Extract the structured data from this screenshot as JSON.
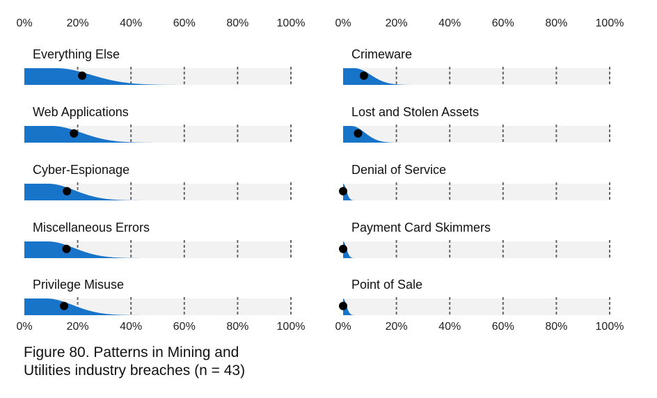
{
  "caption": {
    "line1": "Figure 80. Patterns in Mining and",
    "line2": "Utilities industry breaches (n = 43)"
  },
  "colors": {
    "density": "#1874c8",
    "band": "#f2f2f2",
    "gridline": "#666666",
    "point": "#000000"
  },
  "chart_data": {
    "type": "area",
    "x_ticks": [
      "0%",
      "20%",
      "40%",
      "60%",
      "80%",
      "100%"
    ],
    "xlim": [
      0,
      100
    ],
    "panels": [
      {
        "column": "left",
        "series": [
          {
            "name": "Everything Else",
            "point": 21.7,
            "spread": 13
          },
          {
            "name": "Web Applications",
            "point": 18.6,
            "spread": 11
          },
          {
            "name": "Cyber-Espionage",
            "point": 16.0,
            "spread": 10
          },
          {
            "name": "Miscellaneous Errors",
            "point": 15.8,
            "spread": 10
          },
          {
            "name": "Privilege Misuse",
            "point": 14.9,
            "spread": 10
          }
        ]
      },
      {
        "column": "right",
        "series": [
          {
            "name": "Crimeware",
            "point": 7.8,
            "spread": 6
          },
          {
            "name": "Lost and Stolen Assets",
            "point": 5.6,
            "spread": 5
          },
          {
            "name": "Denial of Service",
            "point": 0,
            "spread": 1.2
          },
          {
            "name": "Payment Card Skimmers",
            "point": 0,
            "spread": 1.2
          },
          {
            "name": "Point of Sale",
            "point": 0,
            "spread": 1.2
          }
        ]
      }
    ]
  }
}
